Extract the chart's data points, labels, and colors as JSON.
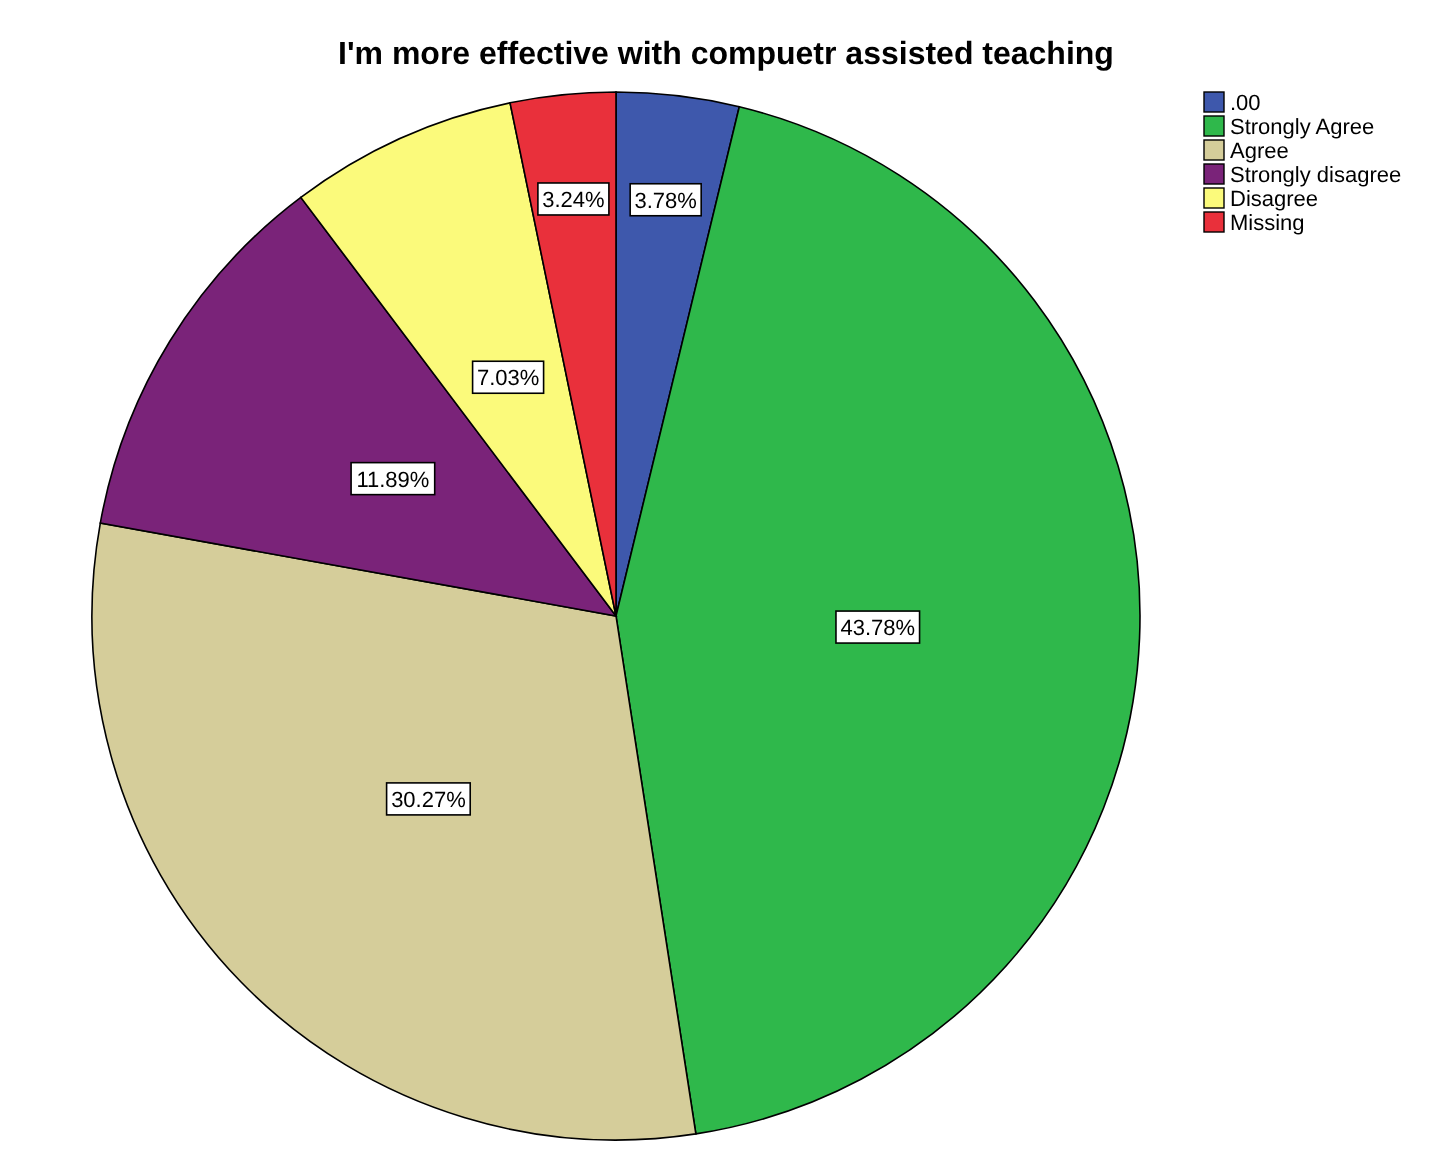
{
  "chart_data": {
    "type": "pie",
    "title": "I'm more effective with compuetr assisted teaching",
    "categories": [
      ".00",
      "Strongly Agree",
      "Agree",
      "Strongly disagree",
      "Disagree",
      "Missing"
    ],
    "values": [
      3.78,
      43.78,
      30.27,
      11.89,
      7.03,
      3.24
    ],
    "value_labels": [
      "3.78%",
      "43.78%",
      "30.27%",
      "11.89%",
      "7.03%",
      "3.24%"
    ],
    "colors": [
      "#3e58ac",
      "#2fb84b",
      "#d5cd9a",
      "#7a2379",
      "#fbfa7b",
      "#e9303b"
    ],
    "legend": "top right"
  }
}
